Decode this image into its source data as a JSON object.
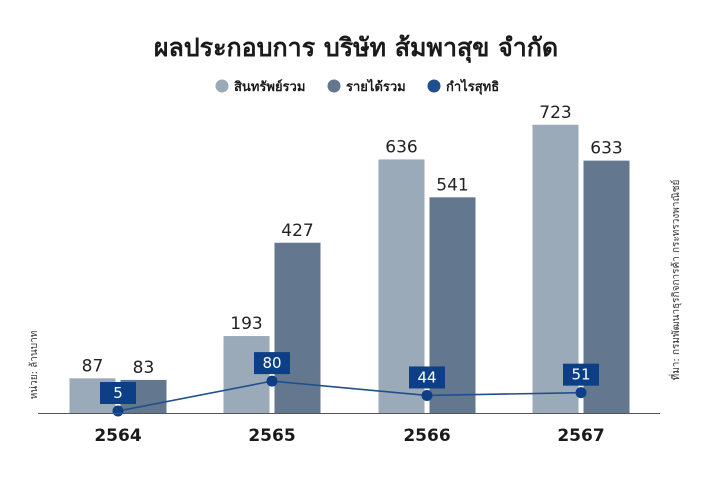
{
  "chart_data": {
    "type": "bar",
    "title": "ผลประกอบการ บริษัท ส้มพาสุข จำกัด",
    "categories": [
      "2564",
      "2565",
      "2566",
      "2567"
    ],
    "series": [
      {
        "name": "สินทรัพย์รวม",
        "type": "bar",
        "color": "#9aaab9",
        "values": [
          87,
          193,
          636,
          723
        ]
      },
      {
        "name": "รายได้รวม",
        "type": "bar",
        "color": "#63778f",
        "values": [
          83,
          427,
          541,
          633
        ]
      },
      {
        "name": "กำไรสุทธิ",
        "type": "line",
        "color": "#1f4f8f",
        "label_color": "#0d3f86",
        "values": [
          5,
          80,
          44,
          51
        ]
      }
    ],
    "ylim": [
      0,
      760
    ],
    "unit_note": "หน่วย: ล้านบาท",
    "source_note": "ที่มา: กรมพัฒนาธุรกิจการค้า กระทรวงพาณิชย์",
    "grid": false,
    "legend_position": "top-center"
  }
}
